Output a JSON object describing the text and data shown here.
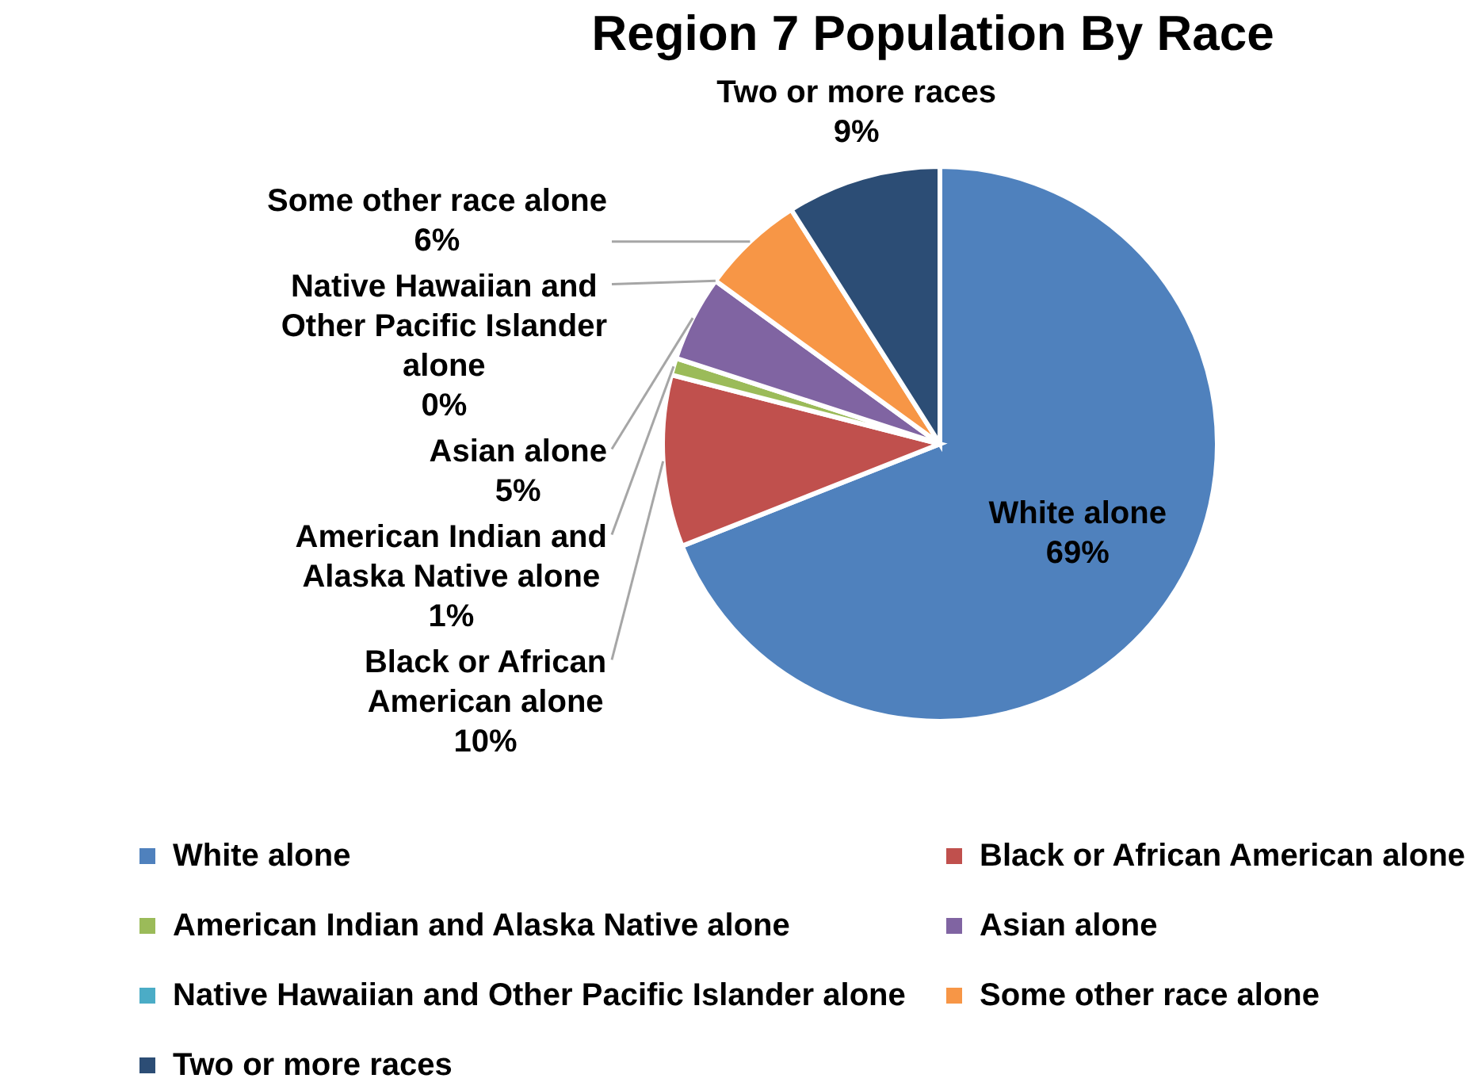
{
  "chart_data": {
    "type": "pie",
    "title": "Region 7 Population By Race",
    "categories": [
      "White alone",
      "Black or African American alone",
      "American Indian and Alaska Native alone",
      "Asian alone",
      "Native Hawaiian and Other Pacific Islander alone",
      "Some other race alone",
      "Two or more races"
    ],
    "values": [
      69,
      10,
      1,
      5,
      0,
      6,
      9
    ],
    "colors": [
      "#4f81bd",
      "#c0504d",
      "#9bbb59",
      "#8064a2",
      "#4bacc6",
      "#f79646",
      "#2c4d75"
    ],
    "value_labels": [
      "69%",
      "10%",
      "1%",
      "5%",
      "0%",
      "6%",
      "9%"
    ],
    "legend": "bottom"
  }
}
